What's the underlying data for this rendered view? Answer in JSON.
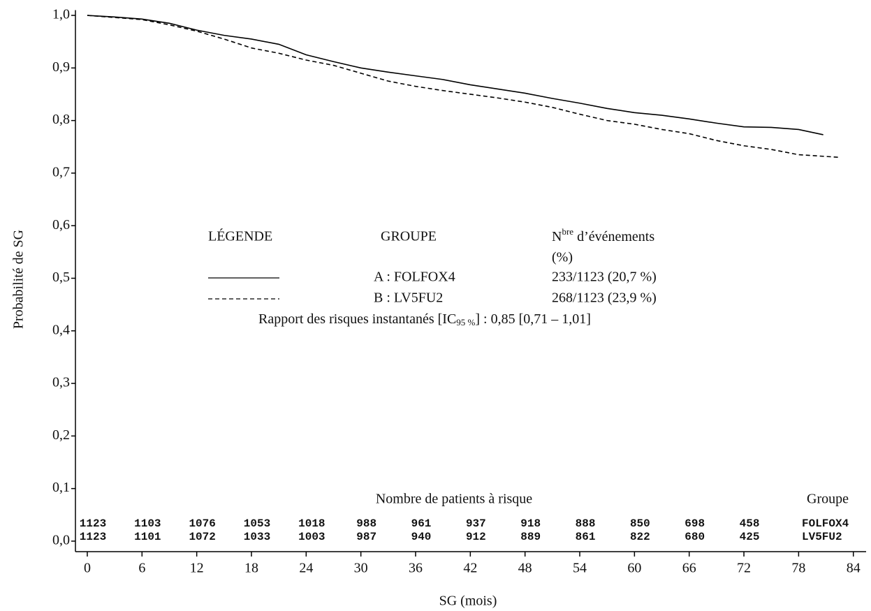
{
  "chart_data": {
    "type": "line",
    "x_label": "SG (mois)",
    "y_label": "Probabilité de SG",
    "xlim": [
      -1.3,
      85.4
    ],
    "ylim": [
      -0.02,
      1.01
    ],
    "xticks": [
      0,
      6,
      12,
      18,
      24,
      30,
      36,
      42,
      48,
      54,
      60,
      66,
      72,
      78,
      84
    ],
    "yticks": [
      {
        "value": 0,
        "label": "0,0"
      },
      {
        "value": 0.1,
        "label": "0,1"
      },
      {
        "value": 0.2,
        "label": "0,2"
      },
      {
        "value": 0.3,
        "label": "0,3"
      },
      {
        "value": 0.4,
        "label": "0,4"
      },
      {
        "value": 0.5,
        "label": "0,5"
      },
      {
        "value": 0.6,
        "label": "0,6"
      },
      {
        "value": 0.7,
        "label": "0,7"
      },
      {
        "value": 0.8,
        "label": "0,8"
      },
      {
        "value": 0.9,
        "label": "0,9"
      },
      {
        "value": 1,
        "label": "1,0"
      }
    ],
    "series": [
      {
        "name": "A : FOLFOX4",
        "events": "233/1123 (20,7 %)",
        "color": "#000000",
        "style": "solid",
        "x": [
          0,
          3,
          6,
          9,
          12,
          15,
          18,
          21,
          24,
          27,
          30,
          33,
          36,
          39,
          42,
          45,
          48,
          51,
          54,
          57,
          60,
          63,
          66,
          69,
          72,
          75,
          78,
          80.7
        ],
        "values": [
          1.0,
          0.997,
          0.993,
          0.985,
          0.972,
          0.962,
          0.955,
          0.945,
          0.925,
          0.912,
          0.9,
          0.892,
          0.885,
          0.878,
          0.868,
          0.86,
          0.852,
          0.842,
          0.833,
          0.823,
          0.815,
          0.81,
          0.803,
          0.795,
          0.788,
          0.787,
          0.783,
          0.773
        ]
      },
      {
        "name": "B : LV5FU2",
        "events": "268/1123 (23,9 %)",
        "color": "#000000",
        "style": "dashed",
        "x": [
          0,
          3,
          6,
          9,
          12,
          15,
          18,
          21,
          24,
          27,
          30,
          33,
          36,
          39,
          42,
          45,
          48,
          51,
          54,
          57,
          60,
          63,
          66,
          69,
          72,
          75,
          78,
          82.5
        ],
        "values": [
          1.0,
          0.996,
          0.992,
          0.982,
          0.97,
          0.955,
          0.938,
          0.928,
          0.915,
          0.905,
          0.89,
          0.875,
          0.865,
          0.857,
          0.85,
          0.843,
          0.835,
          0.825,
          0.812,
          0.8,
          0.793,
          0.783,
          0.775,
          0.762,
          0.752,
          0.745,
          0.735,
          0.73
        ]
      }
    ],
    "legend": {
      "title": "LÉGENDE",
      "group_header": "GROUPE",
      "events_header": [
        "N",
        "bre",
        " d’événements"
      ],
      "events_unit": "(%)"
    },
    "hazard_ratio": [
      "Rapport des risques instantanés [IC",
      "95 %",
      "] : 0,85 [0,71 – 1,01]"
    ],
    "risk_table": {
      "title": "Nombre de patients à risque",
      "group_header": "Groupe",
      "rows": [
        {
          "group": "FOLFOX4",
          "values": [
            1123,
            1103,
            1076,
            1053,
            1018,
            988,
            961,
            937,
            918,
            888,
            850,
            698,
            458
          ]
        },
        {
          "group": "LV5FU2",
          "values": [
            1123,
            1101,
            1072,
            1033,
            1003,
            987,
            940,
            912,
            889,
            861,
            822,
            680,
            425
          ]
        }
      ]
    }
  }
}
